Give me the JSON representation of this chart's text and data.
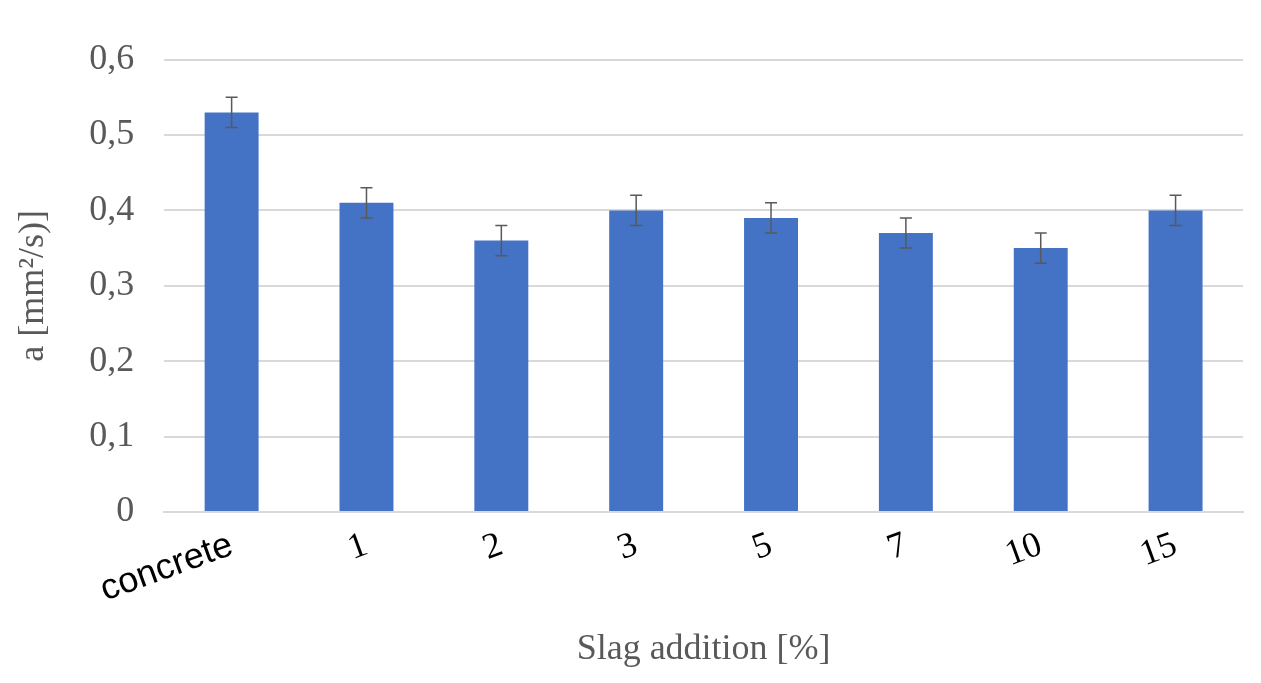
{
  "chart_data": {
    "type": "bar",
    "xlabel": "Slag addition [%]",
    "ylabel": "a [mm²/s)]",
    "categories": [
      "concrete",
      "1",
      "2",
      "3",
      "5",
      "7",
      "10",
      "15"
    ],
    "values": [
      0.53,
      0.41,
      0.36,
      0.4,
      0.39,
      0.37,
      0.35,
      0.4
    ],
    "errors": [
      0.02,
      0.02,
      0.02,
      0.02,
      0.02,
      0.02,
      0.02,
      0.02
    ],
    "color": "#4472c4",
    "ylim": [
      0,
      0.6
    ],
    "yticks": [
      0,
      {
        "value": 0.1,
        "label": "0,1"
      },
      {
        "value": 0.2,
        "label": "0,2"
      },
      {
        "value": 0.3,
        "label": "0,3"
      },
      {
        "value": 0.4,
        "label": "0,4"
      },
      {
        "value": 0.5,
        "label": "0,5"
      },
      {
        "value": 0.6,
        "label": "0,6"
      }
    ],
    "grid": "y",
    "legend": false
  }
}
